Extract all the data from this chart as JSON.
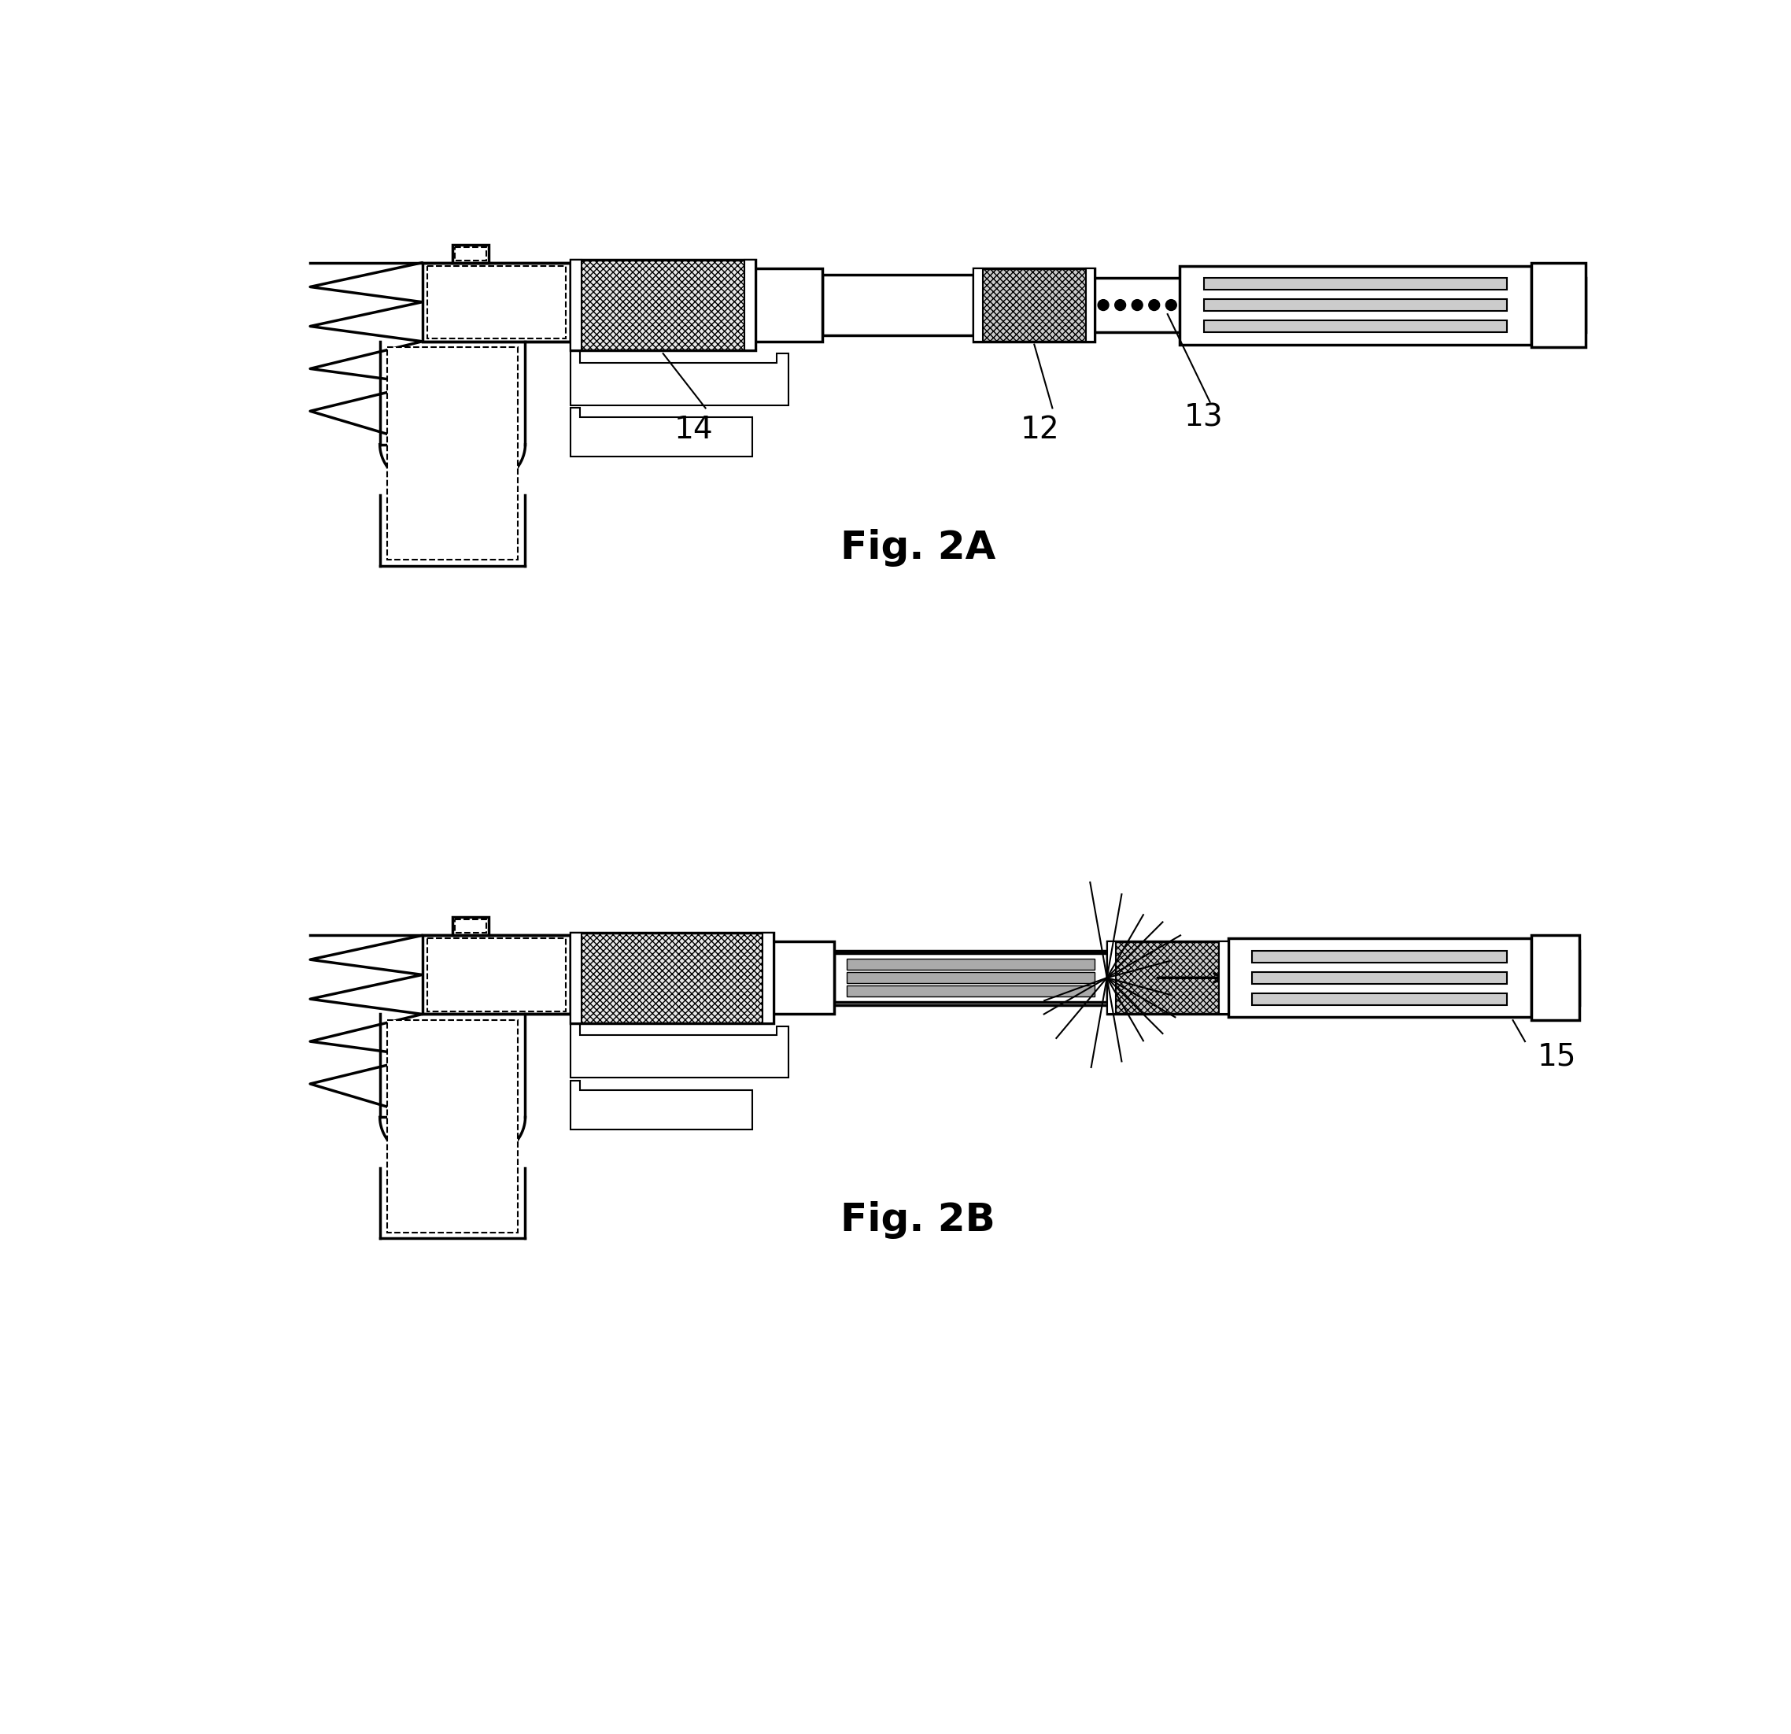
{
  "fig_title_2A": "Fig. 2A",
  "fig_title_2B": "Fig. 2B",
  "label_12": "12",
  "label_13": "13",
  "label_14": "14",
  "label_15": "15",
  "bg_color": "#ffffff",
  "line_color": "#000000",
  "fig_title_fontsize": 36,
  "label_fontsize": 28,
  "title_fontweight": "bold",
  "lw_main": 2.5,
  "lw_thin": 1.5,
  "hatch_dense": "xxxx",
  "hatch_light": "xxx"
}
